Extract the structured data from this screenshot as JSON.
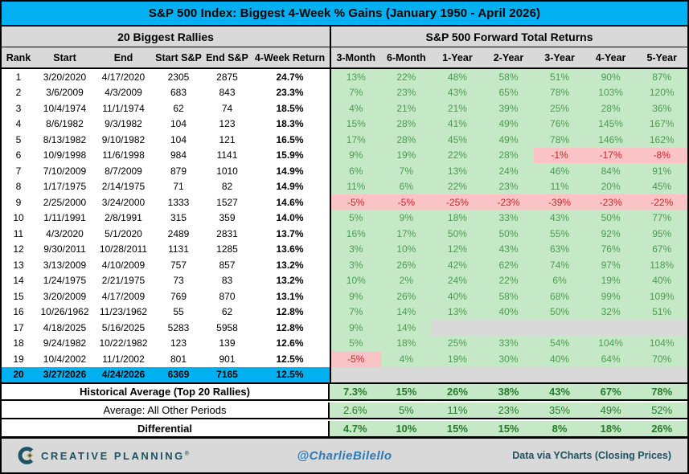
{
  "colors": {
    "title_bg": "#00B0F0",
    "header_bg": "#D9D9D9",
    "pos_bg": "#C5E9C6",
    "pos_text": "#4D9B52",
    "summary_text": "#267B2B",
    "neg_bg": "#FAC3C6",
    "neg_text": "#C62828",
    "empty_bg": "#D9D9D9",
    "highlight_bg": "#00B0F0",
    "footer_bg": "#D9D9D9",
    "brand_color": "#1D5364",
    "brand_gold": "#C9A86A",
    "handle_color": "#2B7BB9"
  },
  "chart_data": {
    "type": "table",
    "title": "S&P 500 Index: Biggest 4-Week % Gains (January 1950 - April 2026)",
    "left_section": "20 Biggest Rallies",
    "right_section": "S&P 500 Forward Total Returns",
    "left_columns": [
      "Rank",
      "Start",
      "End",
      "Start S&P",
      "End S&P",
      "4-Week Return"
    ],
    "right_columns": [
      "3-Month",
      "6-Month",
      "1-Year",
      "2-Year",
      "3-Year",
      "4-Year",
      "5-Year"
    ],
    "rows": [
      {
        "rank": "1",
        "start": "3/20/2020",
        "end": "4/17/2020",
        "start_sp": "2305",
        "end_sp": "2875",
        "four_week_return": "24.7%",
        "forward_returns": [
          "13%",
          "22%",
          "48%",
          "58%",
          "51%",
          "90%",
          "87%"
        ],
        "highlight": false
      },
      {
        "rank": "2",
        "start": "3/6/2009",
        "end": "4/3/2009",
        "start_sp": "683",
        "end_sp": "843",
        "four_week_return": "23.3%",
        "forward_returns": [
          "7%",
          "23%",
          "43%",
          "65%",
          "78%",
          "103%",
          "120%"
        ],
        "highlight": false
      },
      {
        "rank": "3",
        "start": "10/4/1974",
        "end": "11/1/1974",
        "start_sp": "62",
        "end_sp": "74",
        "four_week_return": "18.5%",
        "forward_returns": [
          "4%",
          "21%",
          "21%",
          "39%",
          "25%",
          "28%",
          "36%"
        ],
        "highlight": false
      },
      {
        "rank": "4",
        "start": "8/6/1982",
        "end": "9/3/1982",
        "start_sp": "104",
        "end_sp": "123",
        "four_week_return": "18.3%",
        "forward_returns": [
          "15%",
          "28%",
          "41%",
          "49%",
          "76%",
          "145%",
          "167%"
        ],
        "highlight": false
      },
      {
        "rank": "5",
        "start": "8/13/1982",
        "end": "9/10/1982",
        "start_sp": "104",
        "end_sp": "121",
        "four_week_return": "16.5%",
        "forward_returns": [
          "17%",
          "28%",
          "45%",
          "49%",
          "78%",
          "146%",
          "162%"
        ],
        "highlight": false
      },
      {
        "rank": "6",
        "start": "10/9/1998",
        "end": "11/6/1998",
        "start_sp": "984",
        "end_sp": "1141",
        "four_week_return": "15.9%",
        "forward_returns": [
          "9%",
          "19%",
          "22%",
          "28%",
          "-1%",
          "-17%",
          "-8%"
        ],
        "highlight": false
      },
      {
        "rank": "7",
        "start": "7/10/2009",
        "end": "8/7/2009",
        "start_sp": "879",
        "end_sp": "1010",
        "four_week_return": "14.9%",
        "forward_returns": [
          "6%",
          "7%",
          "13%",
          "24%",
          "46%",
          "84%",
          "91%"
        ],
        "highlight": false
      },
      {
        "rank": "8",
        "start": "1/17/1975",
        "end": "2/14/1975",
        "start_sp": "71",
        "end_sp": "82",
        "four_week_return": "14.9%",
        "forward_returns": [
          "11%",
          "6%",
          "22%",
          "23%",
          "11%",
          "20%",
          "45%"
        ],
        "highlight": false
      },
      {
        "rank": "9",
        "start": "2/25/2000",
        "end": "3/24/2000",
        "start_sp": "1333",
        "end_sp": "1527",
        "four_week_return": "14.6%",
        "forward_returns": [
          "-5%",
          "-5%",
          "-25%",
          "-23%",
          "-39%",
          "-23%",
          "-22%"
        ],
        "highlight": false
      },
      {
        "rank": "10",
        "start": "1/11/1991",
        "end": "2/8/1991",
        "start_sp": "315",
        "end_sp": "359",
        "four_week_return": "14.0%",
        "forward_returns": [
          "5%",
          "9%",
          "18%",
          "33%",
          "43%",
          "50%",
          "77%"
        ],
        "highlight": false
      },
      {
        "rank": "11",
        "start": "4/3/2020",
        "end": "5/1/2020",
        "start_sp": "2489",
        "end_sp": "2831",
        "four_week_return": "13.7%",
        "forward_returns": [
          "16%",
          "17%",
          "50%",
          "50%",
          "55%",
          "92%",
          "95%"
        ],
        "highlight": false
      },
      {
        "rank": "12",
        "start": "9/30/2011",
        "end": "10/28/2011",
        "start_sp": "1131",
        "end_sp": "1285",
        "four_week_return": "13.6%",
        "forward_returns": [
          "3%",
          "10%",
          "12%",
          "43%",
          "63%",
          "76%",
          "67%"
        ],
        "highlight": false
      },
      {
        "rank": "13",
        "start": "3/13/2009",
        "end": "4/10/2009",
        "start_sp": "757",
        "end_sp": "857",
        "four_week_return": "13.2%",
        "forward_returns": [
          "3%",
          "26%",
          "42%",
          "62%",
          "74%",
          "97%",
          "118%"
        ],
        "highlight": false
      },
      {
        "rank": "14",
        "start": "1/24/1975",
        "end": "2/21/1975",
        "start_sp": "73",
        "end_sp": "83",
        "four_week_return": "13.2%",
        "forward_returns": [
          "10%",
          "2%",
          "24%",
          "22%",
          "6%",
          "19%",
          "40%"
        ],
        "highlight": false
      },
      {
        "rank": "15",
        "start": "3/20/2009",
        "end": "4/17/2009",
        "start_sp": "769",
        "end_sp": "870",
        "four_week_return": "13.1%",
        "forward_returns": [
          "9%",
          "26%",
          "40%",
          "58%",
          "68%",
          "99%",
          "109%"
        ],
        "highlight": false
      },
      {
        "rank": "16",
        "start": "10/26/1962",
        "end": "11/23/1962",
        "start_sp": "55",
        "end_sp": "62",
        "four_week_return": "12.8%",
        "forward_returns": [
          "7%",
          "14%",
          "13%",
          "40%",
          "50%",
          "32%",
          "51%"
        ],
        "highlight": false
      },
      {
        "rank": "17",
        "start": "4/18/2025",
        "end": "5/16/2025",
        "start_sp": "5283",
        "end_sp": "5958",
        "four_week_return": "12.8%",
        "forward_returns": [
          "9%",
          "14%",
          "",
          "",
          "",
          "",
          ""
        ],
        "highlight": false
      },
      {
        "rank": "18",
        "start": "9/24/1982",
        "end": "10/22/1982",
        "start_sp": "123",
        "end_sp": "139",
        "four_week_return": "12.6%",
        "forward_returns": [
          "5%",
          "18%",
          "25%",
          "33%",
          "54%",
          "104%",
          "104%"
        ],
        "highlight": false
      },
      {
        "rank": "19",
        "start": "10/4/2002",
        "end": "11/1/2002",
        "start_sp": "801",
        "end_sp": "901",
        "four_week_return": "12.5%",
        "forward_returns": [
          "-5%",
          "4%",
          "19%",
          "30%",
          "40%",
          "64%",
          "70%"
        ],
        "highlight": false
      },
      {
        "rank": "20",
        "start": "3/27/2026",
        "end": "4/24/2026",
        "start_sp": "6369",
        "end_sp": "7165",
        "four_week_return": "12.5%",
        "forward_returns": [
          "",
          "",
          "",
          "",
          "",
          "",
          ""
        ],
        "highlight": true
      }
    ],
    "summary_rows": [
      {
        "label": "Historical Average (Top 20 Rallies)",
        "values": [
          "7.3%",
          "15%",
          "26%",
          "38%",
          "43%",
          "67%",
          "78%"
        ],
        "bold": true
      },
      {
        "label": "Average: All Other Periods",
        "values": [
          "2.6%",
          "5%",
          "11%",
          "23%",
          "35%",
          "49%",
          "52%"
        ],
        "bold": false
      },
      {
        "label": "Differential",
        "values": [
          "4.7%",
          "10%",
          "15%",
          "15%",
          "8%",
          "18%",
          "26%"
        ],
        "bold": true
      }
    ]
  },
  "footer": {
    "brand": "CREATIVE PLANNING",
    "brand_tm": "®",
    "handle": "@CharlieBilello",
    "source": "Data via YCharts (Closing Prices)"
  }
}
